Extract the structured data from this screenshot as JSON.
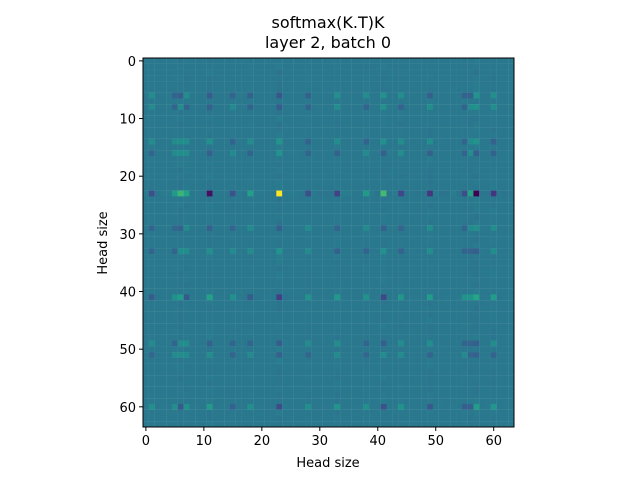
{
  "chart_data": {
    "type": "heatmap",
    "title": "softmax(K.T)K",
    "subtitle": "layer 2, batch 0",
    "xlabel": "Head size",
    "ylabel": "Head size",
    "rows": 64,
    "cols": 64,
    "xlim": [
      -0.5,
      63.5
    ],
    "ylim": [
      63.5,
      -0.5
    ],
    "xticks": [
      0,
      10,
      20,
      30,
      40,
      50,
      60
    ],
    "yticks": [
      0,
      10,
      20,
      30,
      40,
      50,
      60
    ],
    "colormap": "viridis",
    "background_level": 0.5,
    "highlight_row": 23,
    "highlight_col": 23,
    "notable_rows": [
      6,
      8,
      14,
      16,
      23,
      29,
      33,
      41,
      49,
      51,
      60
    ],
    "notable_cols": [
      1,
      5,
      6,
      7,
      11,
      15,
      18,
      23,
      28,
      33,
      38,
      41,
      44,
      49,
      55,
      56,
      57,
      60
    ],
    "row_strengths": [
      0.18,
      0.12,
      0.14,
      0.12,
      0.95,
      0.1,
      0.12,
      0.45,
      0.12,
      0.08,
      0.32
    ],
    "col_strengths": [
      0.3,
      0.25,
      0.55,
      0.35,
      0.7,
      0.25,
      0.3,
      1.0,
      0.3,
      0.45,
      0.25,
      0.75,
      0.4,
      0.55,
      0.3,
      0.35,
      0.85,
      0.55
    ],
    "extreme_cells": [
      {
        "row": 23,
        "col": 23,
        "value": 1.0
      },
      {
        "row": 23,
        "col": 57,
        "value": 0.0
      },
      {
        "row": 23,
        "col": 11,
        "value": 0.05
      },
      {
        "row": 23,
        "col": 41,
        "value": 0.82
      }
    ]
  }
}
